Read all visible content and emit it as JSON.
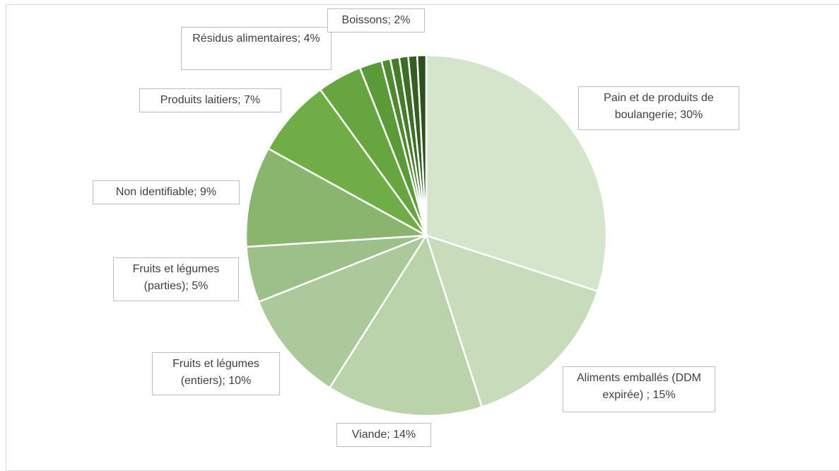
{
  "chart_data": {
    "type": "pie",
    "labels": [
      "Pain et de produits de boulangerie; 30%",
      "Aliments emballés (DDM expirée) ; 15%",
      "Viande; 14%",
      "Fruits et légumes (entiers); 10%",
      "Fruits et légumes (parties); 5%",
      "Non identifiable; 9%",
      "Produits laitiers; 7%",
      "Résidus alimentaires; 4%",
      "Boissons; 2%",
      null,
      null,
      null,
      null,
      null
    ],
    "values": [
      30,
      15,
      14,
      10,
      5,
      9,
      7,
      4,
      2,
      0.8,
      0.8,
      0.8,
      0.8,
      0.8
    ],
    "colors": [
      "#d5e5cc",
      "#c8dcbc",
      "#bad3ab",
      "#abc99a",
      "#9dbf8a",
      "#8ab56f",
      "#70ad47",
      "#66a540",
      "#5a9a38",
      "#4f8a31",
      "#467c2c",
      "#3d6e27",
      "#355f22",
      "#2c511c"
    ]
  }
}
